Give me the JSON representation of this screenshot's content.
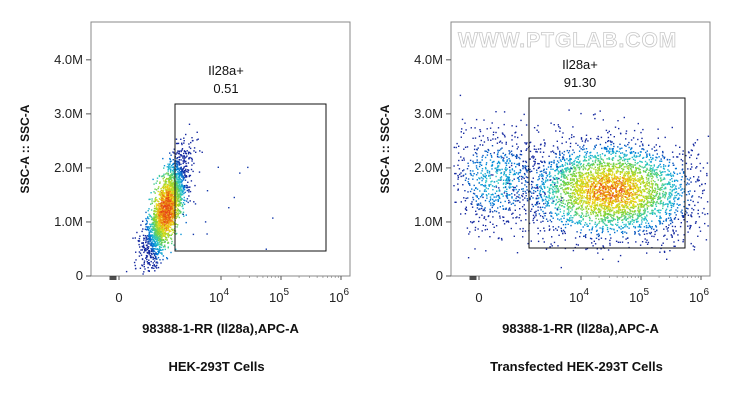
{
  "watermark": "WWW.PTGLAB.COM",
  "chart_data": [
    {
      "type": "scatter",
      "title": "HEK-293T Cells",
      "xlabel": "98388-1-RR (Il28a),APC-A",
      "ylabel": "SSC-A :: SSC-A",
      "x_scale": "biexponential",
      "x_ticks": [
        {
          "base": "0",
          "exp": ""
        },
        {
          "base": "10",
          "exp": "4"
        },
        {
          "base": "10",
          "exp": "5"
        },
        {
          "base": "10",
          "exp": "6"
        }
      ],
      "y_ticks": [
        "0",
        "1.0M",
        "2.0M",
        "3.0M",
        "4.0M"
      ],
      "ylim": [
        0,
        4700000
      ],
      "gate": {
        "name": "Il28a+",
        "value": "0.51"
      },
      "populations": [
        {
          "x_center": 1200,
          "y_center": 1250000,
          "density": "high"
        }
      ]
    },
    {
      "type": "scatter",
      "title": "Transfected HEK-293T Cells",
      "xlabel": "98388-1-RR (Il28a),APC-A",
      "ylabel": "SSC-A :: SSC-A",
      "x_scale": "biexponential",
      "x_ticks": [
        {
          "base": "0",
          "exp": ""
        },
        {
          "base": "10",
          "exp": "4"
        },
        {
          "base": "10",
          "exp": "5"
        },
        {
          "base": "10",
          "exp": "6"
        }
      ],
      "y_ticks": [
        "0",
        "1.0M",
        "2.0M",
        "3.0M",
        "4.0M"
      ],
      "ylim": [
        0,
        4700000
      ],
      "gate": {
        "name": "Il28a+",
        "value": "91.30"
      },
      "populations": [
        {
          "x_center": 30000,
          "y_center": 1600000,
          "density": "high"
        },
        {
          "x_center": 400,
          "y_center": 1800000,
          "density": "low"
        }
      ]
    }
  ]
}
